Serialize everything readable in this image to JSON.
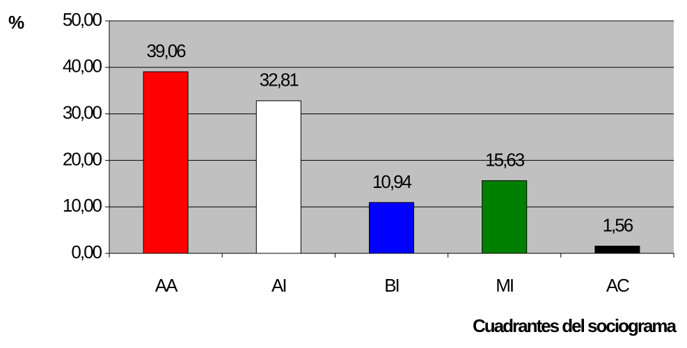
{
  "chart_data": {
    "type": "bar",
    "ylabel": "%",
    "xlabel": "Cuadrantes del sociograma",
    "categories": [
      "AA",
      "AI",
      "BI",
      "MI",
      "AC"
    ],
    "values": [
      39.06,
      32.81,
      10.94,
      15.63,
      1.56
    ],
    "value_labels": [
      "39,06",
      "32,81",
      "10,94",
      "15,63",
      "1,56"
    ],
    "colors": [
      "#ff0000",
      "#ffffff",
      "#0000ff",
      "#008000",
      "#000000"
    ],
    "ylim": [
      0,
      50
    ],
    "yticks": [
      {
        "value": 0,
        "label": "0,00"
      },
      {
        "value": 10,
        "label": "10,00"
      },
      {
        "value": 20,
        "label": "20,00"
      },
      {
        "value": 30,
        "label": "30,00"
      },
      {
        "value": 40,
        "label": "40,00"
      },
      {
        "value": 50,
        "label": "50,00"
      }
    ],
    "grid": true
  }
}
